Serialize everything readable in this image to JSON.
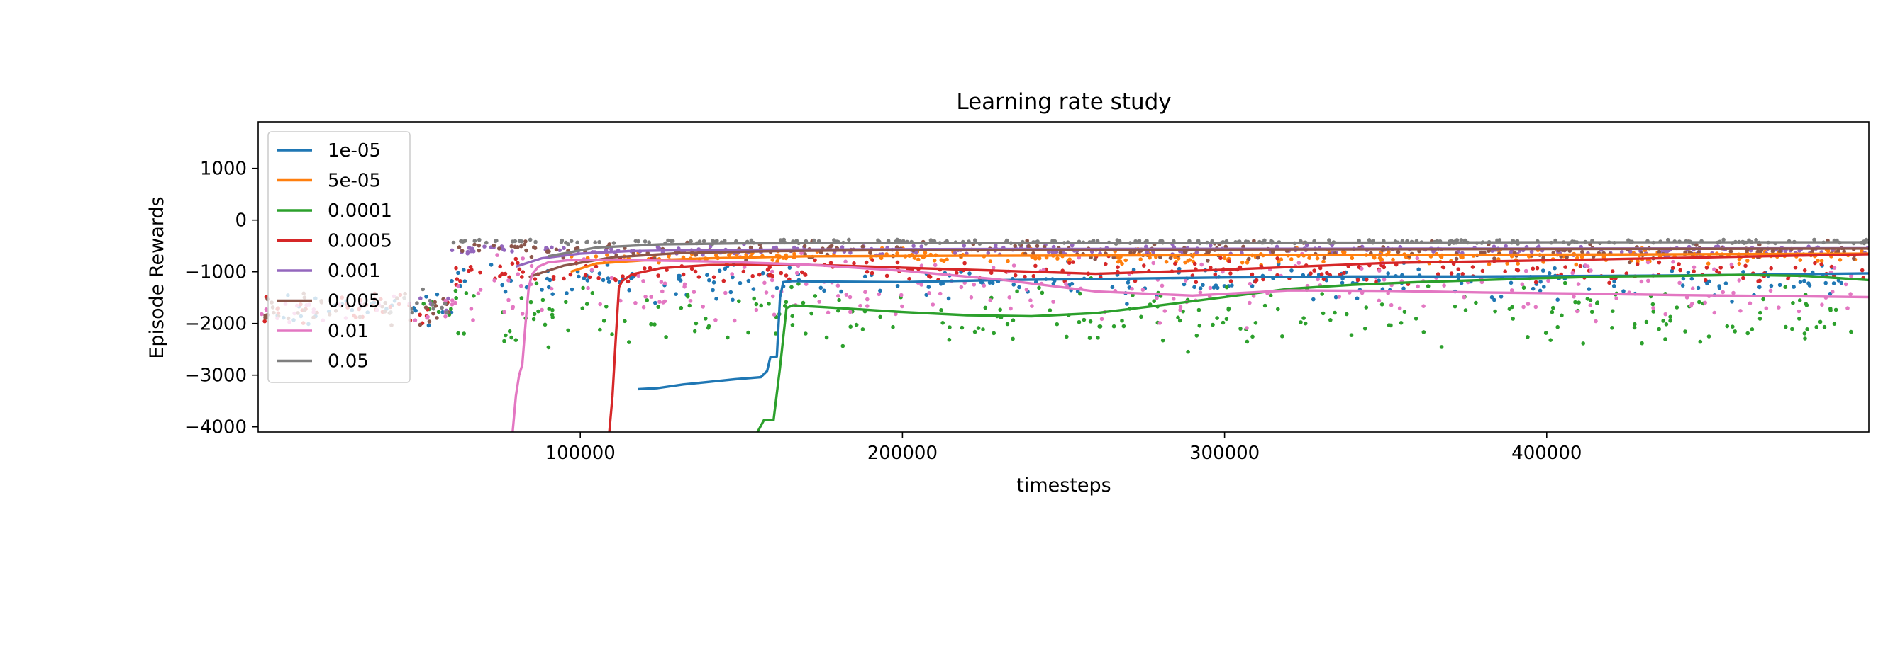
{
  "chart_data": {
    "type": "line",
    "title": "Learning rate study",
    "xlabel": "timesteps",
    "ylabel": "Episode Rewards",
    "xlim": [
      0,
      500000
    ],
    "ylim": [
      -4100,
      1900
    ],
    "xticks": [
      100000,
      200000,
      300000,
      400000
    ],
    "xtick_labels": [
      "100000",
      "200000",
      "300000",
      "400000"
    ],
    "yticks": [
      1000,
      0,
      -1000,
      -2000,
      -3000,
      -4000
    ],
    "ytick_labels": [
      "1000",
      "0",
      "−1000",
      "−2000",
      "−3000",
      "−4000"
    ],
    "legend_position": "top-left",
    "series": [
      {
        "name": "1e-05",
        "color": "#1f77b4",
        "x": [
          118000,
          124000,
          132000,
          140000,
          148000,
          156000,
          158000,
          159000,
          161000,
          162000,
          163000,
          166000,
          175000,
          200000,
          230000,
          260000,
          300000,
          340000,
          380000,
          420000,
          460000,
          500000
        ],
        "y": [
          -3270,
          -3250,
          -3180,
          -3130,
          -3080,
          -3040,
          -2920,
          -2650,
          -2640,
          -1500,
          -1200,
          -1180,
          -1190,
          -1200,
          -1160,
          -1140,
          -1110,
          -1090,
          -1090,
          -1080,
          -1060,
          -1030
        ],
        "scatter_center": -1200,
        "scatter_spread": 500,
        "scatter_start": 5000
      },
      {
        "name": "5e-05",
        "color": "#ff7f0e",
        "x": [
          97000,
          105000,
          120000,
          140000,
          170000,
          220000,
          300000,
          400000,
          500000
        ],
        "y": [
          -1000,
          -840,
          -780,
          -740,
          -700,
          -690,
          -680,
          -670,
          -650
        ],
        "scatter_center": -700,
        "scatter_spread": 200,
        "scatter_start": 90000
      },
      {
        "name": "0.0001",
        "color": "#2ca02c",
        "x": [
          155000,
          157000,
          160000,
          162000,
          164000,
          166000,
          180000,
          200000,
          220000,
          240000,
          260000,
          280000,
          300000,
          320000,
          340000,
          360000,
          380000,
          400000,
          420000,
          440000,
          460000,
          480000,
          500000
        ],
        "y": [
          -4100,
          -3870,
          -3870,
          -2850,
          -1700,
          -1650,
          -1700,
          -1780,
          -1840,
          -1860,
          -1800,
          -1650,
          -1490,
          -1330,
          -1250,
          -1200,
          -1160,
          -1120,
          -1090,
          -1080,
          -1060,
          -1080,
          -1160
        ],
        "scatter_center": -1900,
        "scatter_spread": 900,
        "scatter_start": 50000
      },
      {
        "name": "0.0005",
        "color": "#d62728",
        "x": [
          109000,
          110000,
          111000,
          112000,
          113000,
          116000,
          125000,
          140000,
          160000,
          180000,
          200000,
          230000,
          260000,
          300000,
          350000,
          400000,
          450000,
          500000
        ],
        "y": [
          -4100,
          -3400,
          -2300,
          -1300,
          -1180,
          -1050,
          -930,
          -870,
          -860,
          -880,
          -920,
          -980,
          -1040,
          -960,
          -830,
          -780,
          -720,
          -660
        ],
        "scatter_center": -1000,
        "scatter_spread": 350,
        "scatter_start": 1000
      },
      {
        "name": "0.001",
        "color": "#9467bd",
        "x": [
          80000,
          88000,
          100000,
          115000,
          135000,
          170000,
          220000,
          300000,
          400000,
          500000
        ],
        "y": [
          -900,
          -740,
          -650,
          -600,
          -580,
          -570,
          -560,
          -555,
          -550,
          -545
        ],
        "scatter_center": -580,
        "scatter_spread": 160,
        "scatter_start": 50000
      },
      {
        "name": "0.005",
        "color": "#8c564b",
        "x": [
          84000,
          95000,
          110000,
          130000,
          160000,
          200000,
          300000,
          400000,
          500000
        ],
        "y": [
          -1100,
          -880,
          -720,
          -640,
          -600,
          -580,
          -570,
          -560,
          -550
        ],
        "scatter_center": -600,
        "scatter_spread": 250,
        "scatter_start": 0
      },
      {
        "name": "0.01",
        "color": "#e377c2",
        "x": [
          79000,
          80000,
          81000,
          82000,
          83000,
          84000,
          85000,
          87000,
          90000,
          96000,
          105000,
          120000,
          140000,
          170000,
          200000,
          230000,
          260000,
          290000,
          320000,
          350000,
          380000,
          410000,
          440000,
          470000,
          500000
        ],
        "y": [
          -4100,
          -3400,
          -3000,
          -2800,
          -2000,
          -1300,
          -1050,
          -900,
          -820,
          -780,
          -770,
          -780,
          -800,
          -860,
          -980,
          -1150,
          -1380,
          -1460,
          -1360,
          -1370,
          -1400,
          -1420,
          -1450,
          -1470,
          -1490
        ],
        "scatter_center": -1300,
        "scatter_spread": 900,
        "scatter_start": 1000
      },
      {
        "name": "0.05",
        "color": "#7f7f7f",
        "x": [
          90000,
          105000,
          125000,
          150000,
          200000,
          300000,
          400000,
          500000
        ],
        "y": [
          -700,
          -530,
          -470,
          -450,
          -440,
          -440,
          -430,
          -430
        ],
        "scatter_center": -420,
        "scatter_spread": 60,
        "scatter_start": 40000
      }
    ]
  }
}
